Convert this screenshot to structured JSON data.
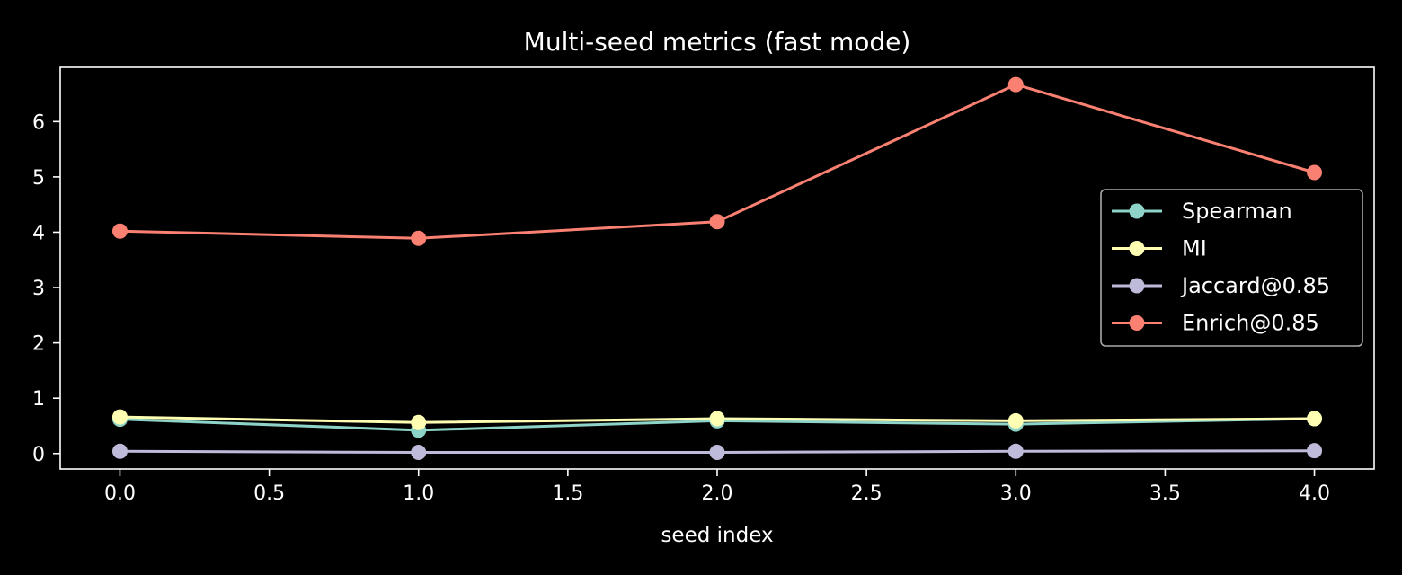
{
  "chart_data": {
    "type": "line",
    "title": "Multi-seed metrics (fast mode)",
    "xlabel": "seed index",
    "ylabel": "",
    "x": [
      0,
      1,
      2,
      3,
      4
    ],
    "xlim": [
      -0.2,
      4.2
    ],
    "ylim": [
      -0.28,
      6.98
    ],
    "xticks": [
      0.0,
      0.5,
      1.0,
      1.5,
      2.0,
      2.5,
      3.0,
      3.5,
      4.0
    ],
    "xtick_labels": [
      "0.0",
      "0.5",
      "1.0",
      "1.5",
      "2.0",
      "2.5",
      "3.0",
      "3.5",
      "4.0"
    ],
    "yticks": [
      0,
      1,
      2,
      3,
      4,
      5,
      6
    ],
    "ytick_labels": [
      "0",
      "1",
      "2",
      "3",
      "4",
      "5",
      "6"
    ],
    "grid": false,
    "legend_position": "center-right",
    "series": [
      {
        "name": "Spearman",
        "color": "#8dd3c7",
        "marker": "circle",
        "values": [
          0.62,
          0.42,
          0.59,
          0.53,
          0.63
        ]
      },
      {
        "name": "MI",
        "color": "#ffffb3",
        "marker": "circle",
        "values": [
          0.66,
          0.56,
          0.63,
          0.59,
          0.63
        ]
      },
      {
        "name": "Jaccard@0.85",
        "color": "#bebada",
        "marker": "circle",
        "values": [
          0.04,
          0.02,
          0.02,
          0.04,
          0.05
        ]
      },
      {
        "name": "Enrich@0.85",
        "color": "#fa8072",
        "marker": "circle",
        "values": [
          4.02,
          3.89,
          4.19,
          6.67,
          5.08
        ]
      }
    ]
  }
}
